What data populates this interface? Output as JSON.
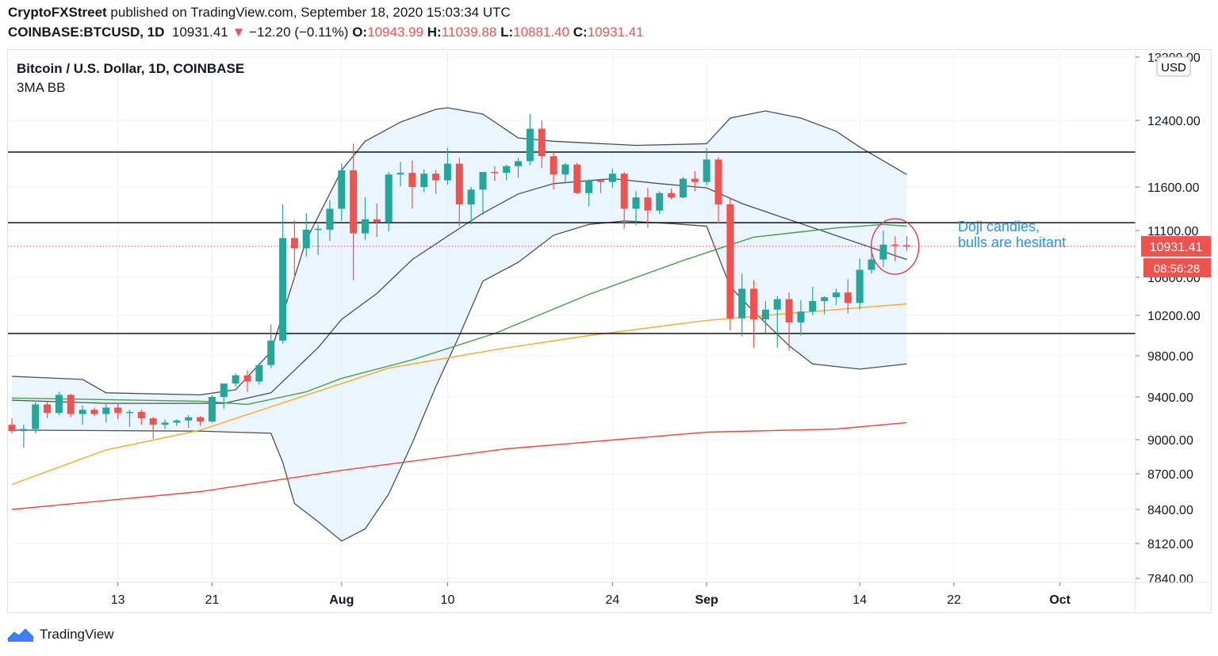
{
  "header": {
    "author": "CryptoFXStreet",
    "published_text": "published on TradingView.com, September 18, 2020 15:03:34 UTC",
    "symbol": "COINBASE:BTCUSD, 1D",
    "last": "10931.41",
    "change_arrow": "▼",
    "change": "−12.20 (−0.11%)",
    "open_label": "O:",
    "open": "10943.99",
    "high_label": "H:",
    "high": "11039.88",
    "low_label": "L:",
    "low": "10881.40",
    "close_label": "C:",
    "close": "10931.41"
  },
  "legend": {
    "title": "Bitcoin / U.S. Dollar, 1D, COINBASE",
    "indicator": "3MA BB"
  },
  "price_axis": {
    "currency": "USD",
    "last_price_label": "10931.41",
    "countdown_label": "08:56:28"
  },
  "annotation": {
    "line1": "Doji candles,",
    "line2": "bulls are hesitant"
  },
  "footer": {
    "brand": "TradingView"
  },
  "colors": {
    "up": "#26a69a",
    "down": "#ef5350",
    "band_fill": "#e3f2fd",
    "band_line": "#4a4f56",
    "ma_green": "#43a047",
    "ma_orange": "#ffa726",
    "ma_red": "#f44336",
    "annotation": "#2196f3",
    "circle": "#e53950",
    "level_line": "#000000"
  },
  "chart_data": {
    "type": "candlestick",
    "title": "Bitcoin / U.S. Dollar, 1D, COINBASE",
    "y_ticks": [
      13200,
      12400,
      11600,
      11100,
      10600,
      10200,
      9800,
      9400,
      9000,
      8700,
      8400,
      8120,
      7840
    ],
    "y_tick_labels": [
      "13200.00",
      "12400.00",
      "11600.00",
      "11100.00",
      "10600.00",
      "10200.00",
      "9800.00",
      "9400.00",
      "9000.00",
      "8700.00",
      "8400.00",
      "8120.00",
      "7840.00"
    ],
    "x_tick_labels": [
      {
        "date": "2020-07-13",
        "label": "13"
      },
      {
        "date": "2020-07-21",
        "label": "21"
      },
      {
        "date": "2020-08-01",
        "label": "Aug"
      },
      {
        "date": "2020-08-10",
        "label": "10"
      },
      {
        "date": "2020-08-24",
        "label": "24"
      },
      {
        "date": "2020-09-01",
        "label": "Sep"
      },
      {
        "date": "2020-09-14",
        "label": "14"
      },
      {
        "date": "2020-09-22",
        "label": "22"
      },
      {
        "date": "2020-10-01",
        "label": "Oct"
      }
    ],
    "candles": [
      {
        "date": "2020-07-04",
        "o": 9140,
        "h": 9200,
        "l": 9060,
        "c": 9080
      },
      {
        "date": "2020-07-05",
        "o": 9080,
        "h": 9140,
        "l": 8930,
        "c": 9100
      },
      {
        "date": "2020-07-06",
        "o": 9100,
        "h": 9350,
        "l": 9060,
        "c": 9330
      },
      {
        "date": "2020-07-07",
        "o": 9330,
        "h": 9350,
        "l": 9200,
        "c": 9250
      },
      {
        "date": "2020-07-08",
        "o": 9250,
        "h": 9450,
        "l": 9230,
        "c": 9420
      },
      {
        "date": "2020-07-09",
        "o": 9420,
        "h": 9430,
        "l": 9210,
        "c": 9240
      },
      {
        "date": "2020-07-10",
        "o": 9240,
        "h": 9320,
        "l": 9140,
        "c": 9280
      },
      {
        "date": "2020-07-11",
        "o": 9280,
        "h": 9300,
        "l": 9220,
        "c": 9240
      },
      {
        "date": "2020-07-12",
        "o": 9240,
        "h": 9330,
        "l": 9160,
        "c": 9300
      },
      {
        "date": "2020-07-13",
        "o": 9300,
        "h": 9340,
        "l": 9190,
        "c": 9250
      },
      {
        "date": "2020-07-14",
        "o": 9250,
        "h": 9280,
        "l": 9120,
        "c": 9260
      },
      {
        "date": "2020-07-15",
        "o": 9260,
        "h": 9280,
        "l": 9140,
        "c": 9200
      },
      {
        "date": "2020-07-16",
        "o": 9200,
        "h": 9210,
        "l": 9010,
        "c": 9140
      },
      {
        "date": "2020-07-17",
        "o": 9140,
        "h": 9190,
        "l": 9100,
        "c": 9160
      },
      {
        "date": "2020-07-18",
        "o": 9160,
        "h": 9190,
        "l": 9130,
        "c": 9180
      },
      {
        "date": "2020-07-19",
        "o": 9180,
        "h": 9230,
        "l": 9110,
        "c": 9210
      },
      {
        "date": "2020-07-20",
        "o": 9210,
        "h": 9220,
        "l": 9130,
        "c": 9170
      },
      {
        "date": "2020-07-21",
        "o": 9170,
        "h": 9420,
        "l": 9160,
        "c": 9400
      },
      {
        "date": "2020-07-22",
        "o": 9400,
        "h": 9520,
        "l": 9290,
        "c": 9530
      },
      {
        "date": "2020-07-23",
        "o": 9530,
        "h": 9630,
        "l": 9500,
        "c": 9610
      },
      {
        "date": "2020-07-24",
        "o": 9610,
        "h": 9660,
        "l": 9450,
        "c": 9550
      },
      {
        "date": "2020-07-25",
        "o": 9550,
        "h": 9730,
        "l": 9520,
        "c": 9710
      },
      {
        "date": "2020-07-26",
        "o": 9710,
        "h": 10110,
        "l": 9680,
        "c": 9950
      },
      {
        "date": "2020-07-27",
        "o": 9950,
        "h": 11400,
        "l": 9920,
        "c": 11020
      },
      {
        "date": "2020-07-28",
        "o": 11020,
        "h": 11220,
        "l": 10590,
        "c": 10910
      },
      {
        "date": "2020-07-29",
        "o": 10910,
        "h": 11300,
        "l": 10820,
        "c": 11110
      },
      {
        "date": "2020-07-30",
        "o": 11110,
        "h": 11170,
        "l": 10840,
        "c": 11120
      },
      {
        "date": "2020-07-31",
        "o": 11110,
        "h": 11450,
        "l": 10990,
        "c": 11350
      },
      {
        "date": "2020-08-01",
        "o": 11350,
        "h": 11880,
        "l": 11210,
        "c": 11800
      },
      {
        "date": "2020-08-02",
        "o": 11800,
        "h": 12120,
        "l": 10570,
        "c": 11070
      },
      {
        "date": "2020-08-03",
        "o": 11070,
        "h": 11480,
        "l": 11000,
        "c": 11230
      },
      {
        "date": "2020-08-04",
        "o": 11230,
        "h": 11410,
        "l": 11030,
        "c": 11200
      },
      {
        "date": "2020-08-05",
        "o": 11200,
        "h": 11780,
        "l": 11090,
        "c": 11750
      },
      {
        "date": "2020-08-06",
        "o": 11750,
        "h": 11900,
        "l": 11610,
        "c": 11770
      },
      {
        "date": "2020-08-07",
        "o": 11770,
        "h": 11920,
        "l": 11350,
        "c": 11600
      },
      {
        "date": "2020-08-08",
        "o": 11600,
        "h": 11810,
        "l": 11540,
        "c": 11760
      },
      {
        "date": "2020-08-09",
        "o": 11760,
        "h": 11800,
        "l": 11520,
        "c": 11680
      },
      {
        "date": "2020-08-10",
        "o": 11680,
        "h": 12070,
        "l": 11630,
        "c": 11880
      },
      {
        "date": "2020-08-11",
        "o": 11880,
        "h": 11950,
        "l": 11150,
        "c": 11400
      },
      {
        "date": "2020-08-12",
        "o": 11400,
        "h": 11600,
        "l": 11170,
        "c": 11570
      },
      {
        "date": "2020-08-13",
        "o": 11570,
        "h": 11780,
        "l": 11280,
        "c": 11780
      },
      {
        "date": "2020-08-14",
        "o": 11780,
        "h": 11850,
        "l": 11670,
        "c": 11770
      },
      {
        "date": "2020-08-15",
        "o": 11770,
        "h": 11870,
        "l": 11680,
        "c": 11850
      },
      {
        "date": "2020-08-16",
        "o": 11850,
        "h": 11950,
        "l": 11710,
        "c": 11910
      },
      {
        "date": "2020-08-17",
        "o": 11910,
        "h": 12480,
        "l": 11860,
        "c": 12300
      },
      {
        "date": "2020-08-18",
        "o": 12300,
        "h": 12400,
        "l": 11830,
        "c": 11970
      },
      {
        "date": "2020-08-19",
        "o": 11970,
        "h": 12020,
        "l": 11570,
        "c": 11750
      },
      {
        "date": "2020-08-20",
        "o": 11750,
        "h": 11890,
        "l": 11650,
        "c": 11870
      },
      {
        "date": "2020-08-21",
        "o": 11870,
        "h": 11890,
        "l": 11520,
        "c": 11530
      },
      {
        "date": "2020-08-22",
        "o": 11530,
        "h": 11690,
        "l": 11380,
        "c": 11680
      },
      {
        "date": "2020-08-23",
        "o": 11680,
        "h": 11700,
        "l": 11530,
        "c": 11660
      },
      {
        "date": "2020-08-24",
        "o": 11660,
        "h": 11820,
        "l": 11590,
        "c": 11760
      },
      {
        "date": "2020-08-25",
        "o": 11760,
        "h": 11780,
        "l": 11120,
        "c": 11350
      },
      {
        "date": "2020-08-26",
        "o": 11350,
        "h": 11550,
        "l": 11160,
        "c": 11480
      },
      {
        "date": "2020-08-27",
        "o": 11480,
        "h": 11590,
        "l": 11130,
        "c": 11330
      },
      {
        "date": "2020-08-28",
        "o": 11330,
        "h": 11550,
        "l": 11290,
        "c": 11530
      },
      {
        "date": "2020-08-29",
        "o": 11530,
        "h": 11580,
        "l": 11460,
        "c": 11480
      },
      {
        "date": "2020-08-30",
        "o": 11480,
        "h": 11720,
        "l": 11470,
        "c": 11700
      },
      {
        "date": "2020-08-31",
        "o": 11700,
        "h": 11790,
        "l": 11550,
        "c": 11660
      },
      {
        "date": "2020-09-01",
        "o": 11660,
        "h": 12070,
        "l": 11620,
        "c": 11930
      },
      {
        "date": "2020-09-02",
        "o": 11930,
        "h": 11960,
        "l": 11180,
        "c": 11400
      },
      {
        "date": "2020-09-03",
        "o": 11400,
        "h": 11480,
        "l": 10050,
        "c": 10170
      },
      {
        "date": "2020-09-04",
        "o": 10170,
        "h": 10640,
        "l": 9990,
        "c": 10480
      },
      {
        "date": "2020-09-05",
        "o": 10480,
        "h": 10570,
        "l": 9880,
        "c": 10160
      },
      {
        "date": "2020-09-06",
        "o": 10160,
        "h": 10350,
        "l": 10020,
        "c": 10260
      },
      {
        "date": "2020-09-07",
        "o": 10260,
        "h": 10400,
        "l": 9880,
        "c": 10370
      },
      {
        "date": "2020-09-08",
        "o": 10370,
        "h": 10440,
        "l": 9850,
        "c": 10130
      },
      {
        "date": "2020-09-09",
        "o": 10130,
        "h": 10360,
        "l": 10000,
        "c": 10240
      },
      {
        "date": "2020-09-10",
        "o": 10240,
        "h": 10500,
        "l": 10200,
        "c": 10350
      },
      {
        "date": "2020-09-11",
        "o": 10350,
        "h": 10400,
        "l": 10210,
        "c": 10390
      },
      {
        "date": "2020-09-12",
        "o": 10390,
        "h": 10480,
        "l": 10310,
        "c": 10440
      },
      {
        "date": "2020-09-13",
        "o": 10440,
        "h": 10580,
        "l": 10220,
        "c": 10330
      },
      {
        "date": "2020-09-14",
        "o": 10330,
        "h": 10800,
        "l": 10260,
        "c": 10680
      },
      {
        "date": "2020-09-15",
        "o": 10680,
        "h": 10940,
        "l": 10640,
        "c": 10790
      },
      {
        "date": "2020-09-16",
        "o": 10790,
        "h": 11100,
        "l": 10710,
        "c": 10950
      },
      {
        "date": "2020-09-17",
        "o": 10950,
        "h": 11040,
        "l": 10770,
        "c": 10943
      },
      {
        "date": "2020-09-18",
        "o": 10944,
        "h": 11040,
        "l": 10881,
        "c": 10931
      }
    ],
    "bollinger": {
      "upper": [
        {
          "date": "2020-07-04",
          "y": 9600
        },
        {
          "date": "2020-07-10",
          "y": 9570
        },
        {
          "date": "2020-07-12",
          "y": 9440
        },
        {
          "date": "2020-07-20",
          "y": 9420
        },
        {
          "date": "2020-07-23",
          "y": 9470
        },
        {
          "date": "2020-07-26",
          "y": 9840
        },
        {
          "date": "2020-07-29",
          "y": 11000
        },
        {
          "date": "2020-08-01",
          "y": 11800
        },
        {
          "date": "2020-08-03",
          "y": 12150
        },
        {
          "date": "2020-08-06",
          "y": 12380
        },
        {
          "date": "2020-08-09",
          "y": 12540
        },
        {
          "date": "2020-08-10",
          "y": 12560
        },
        {
          "date": "2020-08-13",
          "y": 12480
        },
        {
          "date": "2020-08-16",
          "y": 12190
        },
        {
          "date": "2020-08-19",
          "y": 12150
        },
        {
          "date": "2020-08-26",
          "y": 12100
        },
        {
          "date": "2020-09-01",
          "y": 12120
        },
        {
          "date": "2020-09-03",
          "y": 12430
        },
        {
          "date": "2020-09-06",
          "y": 12520
        },
        {
          "date": "2020-09-09",
          "y": 12430
        },
        {
          "date": "2020-09-12",
          "y": 12270
        },
        {
          "date": "2020-09-14",
          "y": 12080
        },
        {
          "date": "2020-09-18",
          "y": 11750
        }
      ],
      "middle": [
        {
          "date": "2020-07-04",
          "y": 9370
        },
        {
          "date": "2020-07-12",
          "y": 9340
        },
        {
          "date": "2020-07-22",
          "y": 9340
        },
        {
          "date": "2020-07-26",
          "y": 9440
        },
        {
          "date": "2020-07-30",
          "y": 9880
        },
        {
          "date": "2020-08-01",
          "y": 10160
        },
        {
          "date": "2020-08-04",
          "y": 10430
        },
        {
          "date": "2020-08-07",
          "y": 10790
        },
        {
          "date": "2020-08-10",
          "y": 11040
        },
        {
          "date": "2020-08-13",
          "y": 11300
        },
        {
          "date": "2020-08-16",
          "y": 11520
        },
        {
          "date": "2020-08-19",
          "y": 11640
        },
        {
          "date": "2020-08-24",
          "y": 11700
        },
        {
          "date": "2020-08-28",
          "y": 11640
        },
        {
          "date": "2020-09-01",
          "y": 11590
        },
        {
          "date": "2020-09-04",
          "y": 11410
        },
        {
          "date": "2020-09-07",
          "y": 11270
        },
        {
          "date": "2020-09-11",
          "y": 11090
        },
        {
          "date": "2020-09-14",
          "y": 10960
        },
        {
          "date": "2020-09-18",
          "y": 10790
        }
      ],
      "lower": [
        {
          "date": "2020-07-04",
          "y": 9090
        },
        {
          "date": "2020-07-20",
          "y": 9080
        },
        {
          "date": "2020-07-26",
          "y": 9060
        },
        {
          "date": "2020-07-27",
          "y": 8800
        },
        {
          "date": "2020-07-28",
          "y": 8450
        },
        {
          "date": "2020-07-30",
          "y": 8300
        },
        {
          "date": "2020-08-01",
          "y": 8140
        },
        {
          "date": "2020-08-03",
          "y": 8240
        },
        {
          "date": "2020-08-05",
          "y": 8530
        },
        {
          "date": "2020-08-07",
          "y": 8970
        },
        {
          "date": "2020-08-09",
          "y": 9500
        },
        {
          "date": "2020-08-11",
          "y": 10000
        },
        {
          "date": "2020-08-13",
          "y": 10560
        },
        {
          "date": "2020-08-16",
          "y": 10760
        },
        {
          "date": "2020-08-19",
          "y": 11050
        },
        {
          "date": "2020-08-22",
          "y": 11170
        },
        {
          "date": "2020-08-25",
          "y": 11210
        },
        {
          "date": "2020-08-29",
          "y": 11180
        },
        {
          "date": "2020-09-01",
          "y": 11150
        },
        {
          "date": "2020-09-03",
          "y": 10500
        },
        {
          "date": "2020-09-05",
          "y": 10240
        },
        {
          "date": "2020-09-08",
          "y": 9900
        },
        {
          "date": "2020-09-10",
          "y": 9720
        },
        {
          "date": "2020-09-14",
          "y": 9670
        },
        {
          "date": "2020-09-18",
          "y": 9720
        }
      ]
    },
    "moving_averages": [
      {
        "color": "green",
        "points": [
          {
            "date": "2020-07-04",
            "y": 9390
          },
          {
            "date": "2020-07-20",
            "y": 9360
          },
          {
            "date": "2020-07-24",
            "y": 9330
          },
          {
            "date": "2020-07-29",
            "y": 9450
          },
          {
            "date": "2020-08-01",
            "y": 9580
          },
          {
            "date": "2020-08-07",
            "y": 9760
          },
          {
            "date": "2020-08-14",
            "y": 10020
          },
          {
            "date": "2020-08-22",
            "y": 10420
          },
          {
            "date": "2020-08-30",
            "y": 10780
          },
          {
            "date": "2020-09-05",
            "y": 11030
          },
          {
            "date": "2020-09-12",
            "y": 11130
          },
          {
            "date": "2020-09-16",
            "y": 11170
          },
          {
            "date": "2020-09-18",
            "y": 11150
          }
        ]
      },
      {
        "color": "orange",
        "points": [
          {
            "date": "2020-07-04",
            "y": 8610
          },
          {
            "date": "2020-07-12",
            "y": 8910
          },
          {
            "date": "2020-07-20",
            "y": 9090
          },
          {
            "date": "2020-07-28",
            "y": 9380
          },
          {
            "date": "2020-08-05",
            "y": 9680
          },
          {
            "date": "2020-08-14",
            "y": 9860
          },
          {
            "date": "2020-08-22",
            "y": 10000
          },
          {
            "date": "2020-09-01",
            "y": 10150
          },
          {
            "date": "2020-09-10",
            "y": 10240
          },
          {
            "date": "2020-09-18",
            "y": 10320
          }
        ]
      },
      {
        "color": "red",
        "points": [
          {
            "date": "2020-07-04",
            "y": 8400
          },
          {
            "date": "2020-07-20",
            "y": 8550
          },
          {
            "date": "2020-08-01",
            "y": 8730
          },
          {
            "date": "2020-08-15",
            "y": 8920
          },
          {
            "date": "2020-09-01",
            "y": 9070
          },
          {
            "date": "2020-09-12",
            "y": 9100
          },
          {
            "date": "2020-09-18",
            "y": 9160
          }
        ]
      }
    ],
    "horizontal_levels": [
      12020,
      11190,
      10020
    ],
    "last_price": 10931.41
  }
}
